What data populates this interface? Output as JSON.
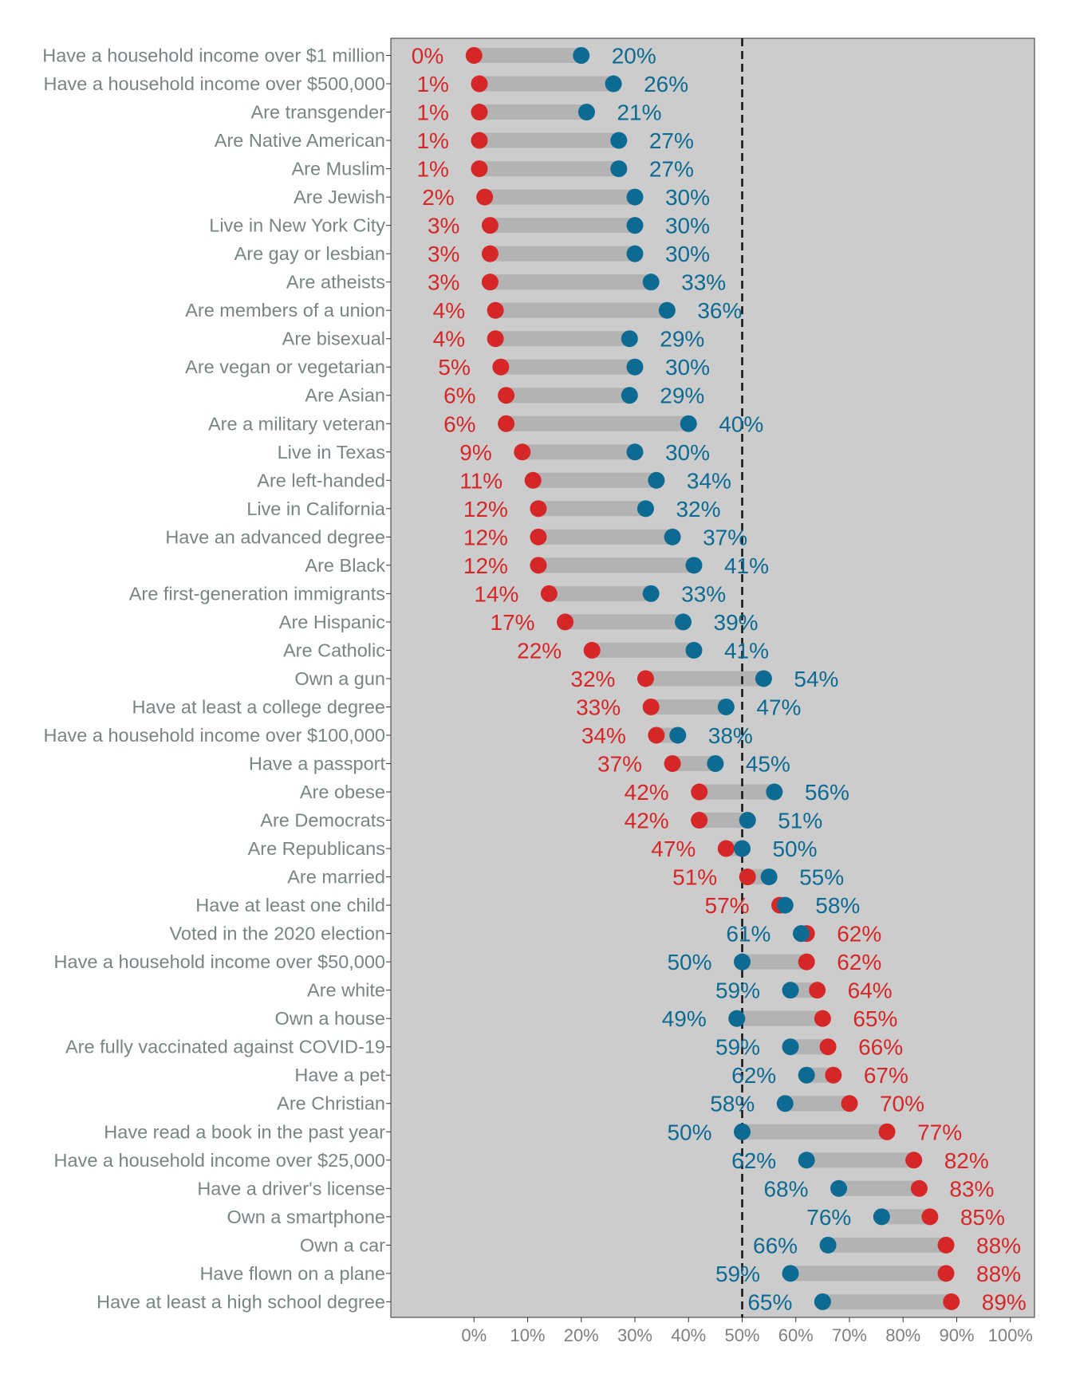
{
  "chart_data": {
    "type": "dumbbell",
    "categories": [
      "Have a household income over $1 million",
      "Have a household income over $500,000",
      "Are transgender",
      "Are Native American",
      "Are Muslim",
      "Are Jewish",
      "Live in New York City",
      "Are gay or lesbian",
      "Are atheists",
      "Are members of a union",
      "Are bisexual",
      "Are vegan or vegetarian",
      "Are Asian",
      "Are a military veteran",
      "Live in Texas",
      "Are left-handed",
      "Live in California",
      "Have an advanced degree",
      "Are Black",
      "Are first-generation immigrants",
      "Are Hispanic",
      "Are Catholic",
      "Own a gun",
      "Have at least a college degree",
      "Have a household income over $100,000",
      "Have a passport",
      "Are obese",
      "Are Democrats",
      "Are Republicans",
      "Are married",
      "Have at least one child",
      "Voted in the 2020 election",
      "Have a household income over $50,000",
      "Are white",
      "Own a house",
      "Are fully vaccinated against COVID-19",
      "Have a pet",
      "Are Christian",
      "Have read a book in the past year",
      "Have a household income over $25,000",
      "Have a driver's license",
      "Own a smartphone",
      "Own a car",
      "Have flown on a plane",
      "Have at least a high school degree"
    ],
    "series": [
      {
        "color": "#d62728",
        "values": [
          0,
          1,
          1,
          1,
          1,
          2,
          3,
          3,
          3,
          4,
          4,
          5,
          6,
          6,
          9,
          11,
          12,
          12,
          12,
          14,
          17,
          22,
          32,
          33,
          34,
          37,
          42,
          42,
          47,
          51,
          57,
          62,
          62,
          64,
          65,
          66,
          67,
          70,
          77,
          82,
          83,
          85,
          88,
          88,
          89
        ]
      },
      {
        "color": "#0d6b93",
        "values": [
          20,
          26,
          21,
          27,
          27,
          30,
          30,
          30,
          33,
          36,
          29,
          30,
          29,
          40,
          30,
          34,
          32,
          37,
          41,
          33,
          39,
          41,
          54,
          47,
          38,
          45,
          56,
          51,
          50,
          55,
          58,
          61,
          50,
          59,
          49,
          59,
          62,
          58,
          50,
          62,
          68,
          76,
          66,
          59,
          65
        ]
      }
    ],
    "x_ticks": [
      "0%",
      "10%",
      "20%",
      "30%",
      "40%",
      "50%",
      "60%",
      "70%",
      "80%",
      "90%",
      "100%"
    ],
    "xlim": [
      -15.5,
      104.5
    ],
    "reference_line": 50,
    "unit_suffix": "%",
    "grid": false,
    "legend": "none",
    "colors": {
      "panel_background": "#cccccc",
      "segment": "#b3b3b3",
      "category_text": "#7a8580",
      "tick_text": "#7f7f7f",
      "reference_line": "#111111"
    }
  }
}
